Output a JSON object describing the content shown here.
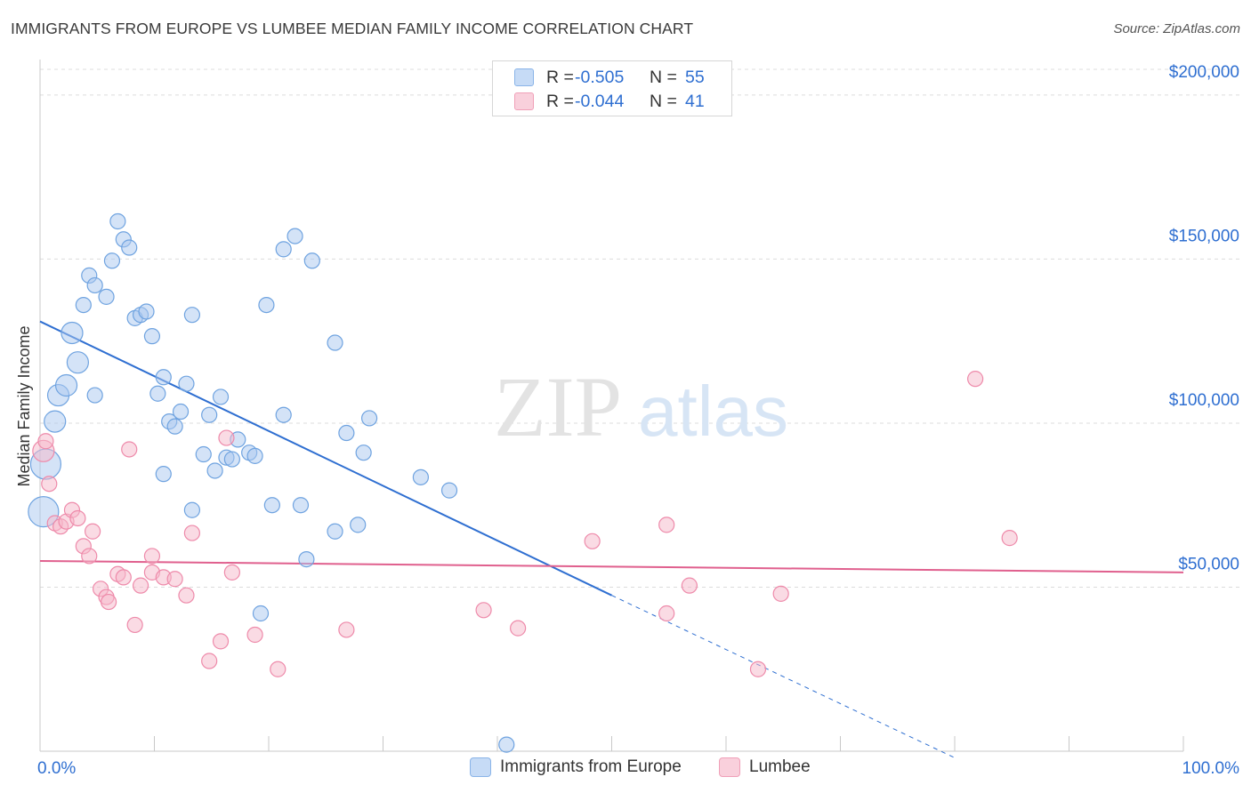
{
  "title": "IMMIGRANTS FROM EUROPE VS LUMBEE MEDIAN FAMILY INCOME CORRELATION CHART",
  "source": "Source: ZipAtlas.com",
  "watermark": {
    "zip": "ZIP",
    "atlas": "atlas"
  },
  "legend": {
    "rows": [
      {
        "r_label": "R =",
        "r_value": "-0.505",
        "n_label": "N =",
        "n_value": "55",
        "color": "#a9c8f0"
      },
      {
        "r_label": "R =",
        "r_value": "-0.044",
        "n_label": "N =",
        "n_value": "41",
        "color": "#f5b8ca"
      }
    ]
  },
  "bottom_legend": {
    "items": [
      {
        "label": "Immigrants from Europe",
        "color": "#a9c8f0"
      },
      {
        "label": "Lumbee",
        "color": "#f5b8ca"
      }
    ]
  },
  "chart_data": {
    "type": "scatter",
    "title": "IMMIGRANTS FROM EUROPE VS LUMBEE MEDIAN FAMILY INCOME CORRELATION CHART",
    "xlabel": "",
    "ylabel": "Median Family Income",
    "xlim": [
      0,
      100
    ],
    "ylim": [
      0,
      210000
    ],
    "x_tick_labels": [
      "0.0%",
      "100.0%"
    ],
    "y_ticks": [
      50000,
      100000,
      150000,
      200000
    ],
    "y_tick_labels": [
      "$50,000",
      "$100,000",
      "$150,000",
      "$200,000"
    ],
    "grid": true,
    "legend_position": "top-center",
    "series": [
      {
        "name": "Immigrants from Europe",
        "color": "#6fa3e0",
        "fill": "#a9c8f0",
        "trend": {
          "x": [
            0,
            50
          ],
          "y": [
            131000,
            47500
          ],
          "dashed_to": [
            80,
            -2000
          ],
          "color": "#2f6fd1"
        },
        "points": [
          [
            0.3,
            73000,
            3
          ],
          [
            0.5,
            87500,
            3
          ],
          [
            1.3,
            100500,
            2
          ],
          [
            1.6,
            108500,
            2
          ],
          [
            2.3,
            111500,
            2
          ],
          [
            2.8,
            127500,
            2
          ],
          [
            3.3,
            118500,
            2
          ],
          [
            3.8,
            136000,
            1
          ],
          [
            4.3,
            145000,
            1
          ],
          [
            4.8,
            108500,
            1
          ],
          [
            4.8,
            142000,
            1
          ],
          [
            5.8,
            138500,
            1
          ],
          [
            6.3,
            149500,
            1
          ],
          [
            6.8,
            161500,
            1
          ],
          [
            7.3,
            156000,
            1
          ],
          [
            7.8,
            153500,
            1
          ],
          [
            8.3,
            132000,
            1
          ],
          [
            8.8,
            133000,
            1
          ],
          [
            9.3,
            134000,
            1
          ],
          [
            9.8,
            126500,
            1
          ],
          [
            10.3,
            109000,
            1
          ],
          [
            10.8,
            114000,
            1
          ],
          [
            11.3,
            100500,
            1
          ],
          [
            11.8,
            99000,
            1
          ],
          [
            12.3,
            103500,
            1
          ],
          [
            12.8,
            112000,
            1
          ],
          [
            13.3,
            133000,
            1
          ],
          [
            14.3,
            90500,
            1
          ],
          [
            14.8,
            102500,
            1
          ],
          [
            15.3,
            85500,
            1
          ],
          [
            15.8,
            108000,
            1
          ],
          [
            16.3,
            89500,
            1
          ],
          [
            16.8,
            89000,
            1
          ],
          [
            17.3,
            95000,
            1
          ],
          [
            18.3,
            91000,
            1
          ],
          [
            18.8,
            90000,
            1
          ],
          [
            19.3,
            42000,
            1
          ],
          [
            19.8,
            136000,
            1
          ],
          [
            20.3,
            75000,
            1
          ],
          [
            21.3,
            153000,
            1
          ],
          [
            21.3,
            102500,
            1
          ],
          [
            22.3,
            157000,
            1
          ],
          [
            22.8,
            75000,
            1
          ],
          [
            23.3,
            58500,
            1
          ],
          [
            23.8,
            149500,
            1
          ],
          [
            10.8,
            84500,
            1
          ],
          [
            25.8,
            124500,
            1
          ],
          [
            13.3,
            73500,
            1
          ],
          [
            25.8,
            67000,
            1
          ],
          [
            26.8,
            97000,
            1
          ],
          [
            27.8,
            69000,
            1
          ],
          [
            28.3,
            91000,
            1
          ],
          [
            28.8,
            101500,
            1
          ],
          [
            33.3,
            83500,
            1
          ],
          [
            35.8,
            79500,
            1
          ],
          [
            40.8,
            2000,
            1
          ]
        ]
      },
      {
        "name": "Lumbee",
        "color": "#ee8aaa",
        "fill": "#f5b8ca",
        "trend": {
          "x": [
            0,
            100
          ],
          "y": [
            58000,
            54500
          ],
          "color": "#e0608e"
        },
        "points": [
          [
            0.3,
            91500,
            2
          ],
          [
            0.5,
            94500,
            1
          ],
          [
            0.8,
            81500,
            1
          ],
          [
            1.3,
            69500,
            1
          ],
          [
            1.8,
            68500,
            1
          ],
          [
            2.3,
            70000,
            1
          ],
          [
            2.8,
            73500,
            1
          ],
          [
            3.3,
            71000,
            1
          ],
          [
            3.8,
            62500,
            1
          ],
          [
            4.3,
            59500,
            1
          ],
          [
            4.6,
            67000,
            1
          ],
          [
            5.3,
            49500,
            1
          ],
          [
            5.8,
            47000,
            1
          ],
          [
            6.0,
            45500,
            1
          ],
          [
            6.8,
            54000,
            1
          ],
          [
            7.3,
            53000,
            1
          ],
          [
            7.8,
            92000,
            1
          ],
          [
            8.3,
            38500,
            1
          ],
          [
            8.8,
            50500,
            1
          ],
          [
            9.8,
            59500,
            1
          ],
          [
            9.8,
            54500,
            1
          ],
          [
            10.8,
            53000,
            1
          ],
          [
            11.8,
            52500,
            1
          ],
          [
            12.8,
            47500,
            1
          ],
          [
            13.3,
            66500,
            1
          ],
          [
            14.8,
            27500,
            1
          ],
          [
            15.8,
            33500,
            1
          ],
          [
            16.3,
            95500,
            1
          ],
          [
            16.8,
            54500,
            1
          ],
          [
            18.8,
            35500,
            1
          ],
          [
            20.8,
            25000,
            1
          ],
          [
            26.8,
            37000,
            1
          ],
          [
            38.8,
            43000,
            1
          ],
          [
            41.8,
            37500,
            1
          ],
          [
            48.3,
            64000,
            1
          ],
          [
            54.8,
            69000,
            1
          ],
          [
            54.8,
            42000,
            1
          ],
          [
            56.8,
            50500,
            1
          ],
          [
            62.8,
            25000,
            1
          ],
          [
            64.8,
            48000,
            1
          ],
          [
            81.8,
            113500,
            1
          ],
          [
            84.8,
            65000,
            1
          ]
        ]
      }
    ]
  }
}
